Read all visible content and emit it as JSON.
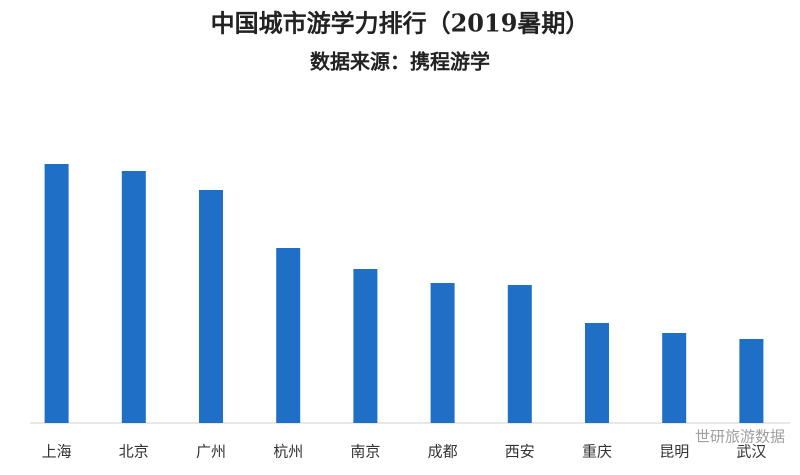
{
  "chart_data": {
    "type": "bar",
    "title": "中国城市游学力排行（2019暑期）",
    "subtitle": "数据来源：携程游学",
    "categories": [
      "上海",
      "北京",
      "广州",
      "杭州",
      "南京",
      "成都",
      "西安",
      "重庆",
      "昆明",
      "武汉"
    ],
    "values": [
      259,
      252,
      233,
      175,
      154,
      140,
      138,
      100,
      90,
      84
    ],
    "color": "#1f6fc6",
    "ylim": [
      0,
      280
    ],
    "grid": false,
    "watermark": "世研旅游数据"
  }
}
